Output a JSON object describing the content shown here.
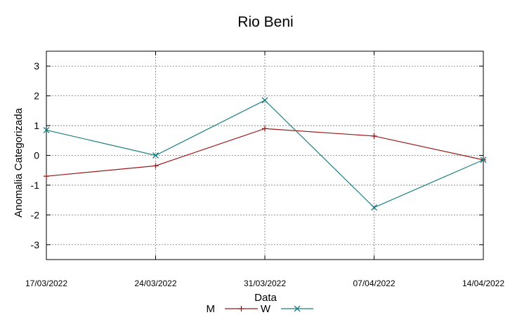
{
  "chart_data": {
    "type": "line",
    "title": "Rio Beni",
    "xlabel": "Data",
    "ylabel": "Anomalia Categorizada",
    "categories": [
      "17/03/2022",
      "24/03/2022",
      "31/03/2022",
      "07/04/2022",
      "14/04/2022"
    ],
    "ylim": [
      -3.5,
      3.5
    ],
    "yticks": [
      3,
      2,
      1,
      0,
      -1,
      -2,
      -3
    ],
    "grid": true,
    "legend_position": "bottom",
    "series": [
      {
        "name": "M",
        "color": "#9b1a1a",
        "marker": "plus",
        "values": [
          -0.7,
          -0.35,
          0.9,
          0.65,
          -0.15
        ]
      },
      {
        "name": "W",
        "color": "#1a7f80",
        "marker": "cross",
        "values": [
          0.85,
          0.0,
          1.85,
          -1.75,
          -0.15
        ]
      }
    ]
  }
}
